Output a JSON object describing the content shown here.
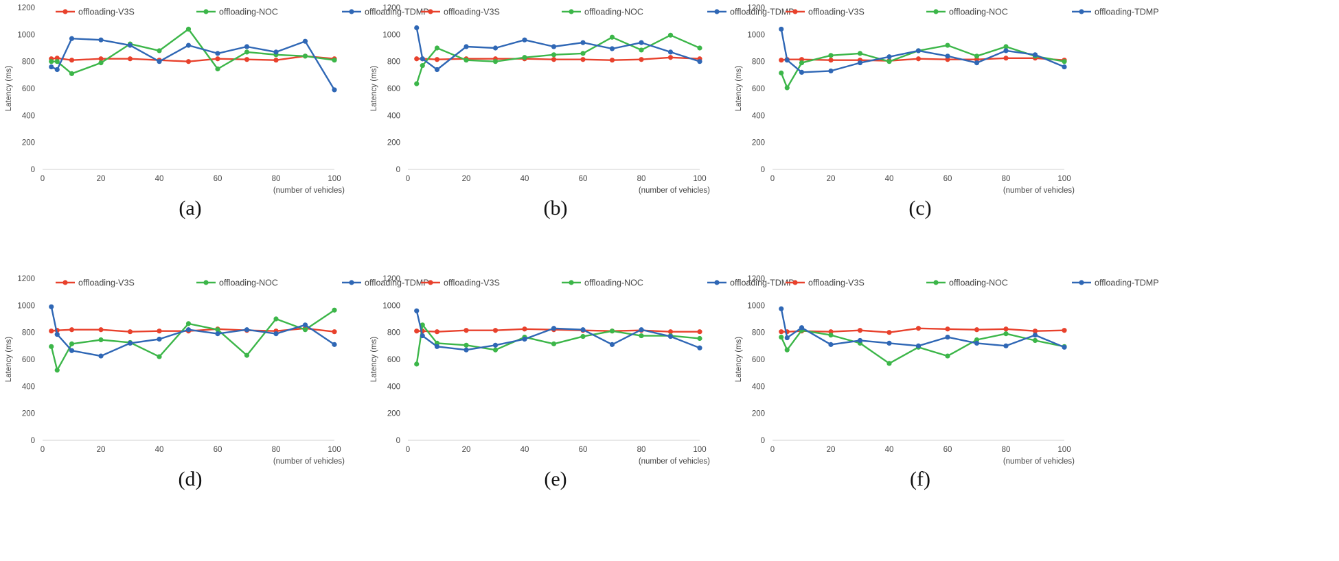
{
  "colors": {
    "V3S": "#e8412c",
    "NOC": "#3cb649",
    "TDMP": "#2f67b5"
  },
  "chart_data": [
    {
      "type": "line",
      "caption": "(a)",
      "ylabel": "Latency (ms)",
      "xlabel": "(number of vehicles)",
      "ylim": [
        0,
        1200
      ],
      "xlim": [
        0,
        100
      ],
      "yticks": [
        "0",
        "200",
        "400",
        "600",
        "800",
        "1000",
        "1200"
      ],
      "xticks": [
        "0",
        "20",
        "40",
        "60",
        "80",
        "100"
      ],
      "legend": "top",
      "x": [
        3,
        5,
        10,
        20,
        30,
        40,
        50,
        60,
        70,
        80,
        90,
        100
      ],
      "series": [
        {
          "name": "offloading-V3S",
          "color": "V3S",
          "values": [
            820,
            825,
            810,
            820,
            820,
            810,
            800,
            820,
            815,
            810,
            840,
            820
          ]
        },
        {
          "name": "offloading-NOC",
          "color": "NOC",
          "values": [
            800,
            800,
            710,
            790,
            930,
            880,
            1040,
            745,
            870,
            850,
            840,
            810
          ]
        },
        {
          "name": "offloading-TDMP",
          "color": "TDMP",
          "values": [
            760,
            740,
            970,
            960,
            920,
            800,
            920,
            860,
            910,
            870,
            950,
            590
          ]
        }
      ]
    },
    {
      "type": "line",
      "caption": "(b)",
      "ylabel": "Latency (ms)",
      "xlabel": "(number of vehicles)",
      "ylim": [
        0,
        1200
      ],
      "xlim": [
        0,
        100
      ],
      "yticks": [
        "0",
        "200",
        "400",
        "600",
        "800",
        "1000",
        "1200"
      ],
      "xticks": [
        "0",
        "20",
        "40",
        "60",
        "80",
        "100"
      ],
      "legend": "top",
      "x": [
        3,
        5,
        10,
        20,
        30,
        40,
        50,
        60,
        70,
        80,
        90,
        100
      ],
      "series": [
        {
          "name": "offloading-V3S",
          "color": "V3S",
          "values": [
            820,
            820,
            815,
            820,
            820,
            820,
            815,
            815,
            810,
            815,
            830,
            820
          ]
        },
        {
          "name": "offloading-NOC",
          "color": "NOC",
          "values": [
            635,
            770,
            900,
            810,
            800,
            830,
            850,
            860,
            980,
            885,
            995,
            900
          ]
        },
        {
          "name": "offloading-TDMP",
          "color": "TDMP",
          "values": [
            1050,
            820,
            740,
            910,
            900,
            960,
            910,
            940,
            895,
            940,
            870,
            800
          ]
        }
      ]
    },
    {
      "type": "line",
      "caption": "(c)",
      "ylabel": "Latency (ms)",
      "xlabel": "(number of vehicles)",
      "ylim": [
        0,
        1200
      ],
      "xlim": [
        0,
        100
      ],
      "yticks": [
        "0",
        "200",
        "400",
        "600",
        "800",
        "1000",
        "1200"
      ],
      "xticks": [
        "0",
        "20",
        "40",
        "60",
        "80",
        "100"
      ],
      "legend": "top",
      "x": [
        3,
        5,
        10,
        20,
        30,
        40,
        50,
        60,
        70,
        80,
        90,
        100
      ],
      "series": [
        {
          "name": "offloading-V3S",
          "color": "V3S",
          "values": [
            810,
            815,
            815,
            810,
            810,
            805,
            820,
            815,
            815,
            825,
            825,
            810
          ]
        },
        {
          "name": "offloading-NOC",
          "color": "NOC",
          "values": [
            715,
            605,
            790,
            845,
            860,
            800,
            880,
            920,
            840,
            910,
            840,
            800
          ]
        },
        {
          "name": "offloading-TDMP",
          "color": "TDMP",
          "values": [
            1040,
            810,
            720,
            730,
            790,
            835,
            880,
            840,
            790,
            880,
            850,
            760
          ]
        }
      ]
    },
    {
      "type": "line",
      "caption": "(d)",
      "ylabel": "Latency (ms)",
      "xlabel": "(number of vehicles)",
      "ylim": [
        0,
        1200
      ],
      "xlim": [
        0,
        100
      ],
      "yticks": [
        "0",
        "200",
        "400",
        "600",
        "800",
        "1000",
        "1200"
      ],
      "xticks": [
        "0",
        "20",
        "40",
        "60",
        "80",
        "100"
      ],
      "legend": "top",
      "x": [
        3,
        5,
        10,
        20,
        30,
        40,
        50,
        60,
        70,
        80,
        90,
        100
      ],
      "series": [
        {
          "name": "offloading-V3S",
          "color": "V3S",
          "values": [
            810,
            815,
            820,
            820,
            805,
            810,
            810,
            825,
            815,
            810,
            830,
            805
          ]
        },
        {
          "name": "offloading-NOC",
          "color": "NOC",
          "values": [
            695,
            520,
            715,
            745,
            725,
            620,
            865,
            820,
            630,
            900,
            820,
            965
          ]
        },
        {
          "name": "offloading-TDMP",
          "color": "TDMP",
          "values": [
            990,
            785,
            665,
            625,
            720,
            750,
            820,
            790,
            820,
            790,
            855,
            710
          ]
        }
      ]
    },
    {
      "type": "line",
      "caption": "(e)",
      "ylabel": "Latency (ms)",
      "xlabel": "(number of vehicles)",
      "ylim": [
        0,
        1200
      ],
      "xlim": [
        0,
        100
      ],
      "yticks": [
        "0",
        "200",
        "400",
        "600",
        "800",
        "1000",
        "1200"
      ],
      "xticks": [
        "0",
        "20",
        "40",
        "60",
        "80",
        "100"
      ],
      "legend": "top",
      "x": [
        3,
        5,
        10,
        20,
        30,
        40,
        50,
        60,
        70,
        80,
        90,
        100
      ],
      "series": [
        {
          "name": "offloading-V3S",
          "color": "V3S",
          "values": [
            810,
            810,
            805,
            815,
            815,
            825,
            820,
            815,
            810,
            815,
            805,
            805
          ]
        },
        {
          "name": "offloading-NOC",
          "color": "NOC",
          "values": [
            565,
            855,
            720,
            705,
            670,
            765,
            715,
            770,
            810,
            775,
            775,
            755
          ]
        },
        {
          "name": "offloading-TDMP",
          "color": "TDMP",
          "values": [
            960,
            775,
            695,
            670,
            705,
            750,
            830,
            820,
            710,
            820,
            770,
            685
          ]
        }
      ]
    },
    {
      "type": "line",
      "caption": "(f)",
      "ylabel": "Latency (ms)",
      "xlabel": "(number of vehicles)",
      "ylim": [
        0,
        1200
      ],
      "xlim": [
        0,
        100
      ],
      "yticks": [
        "0",
        "200",
        "400",
        "600",
        "800",
        "1000",
        "1200"
      ],
      "xticks": [
        "0",
        "20",
        "40",
        "60",
        "80",
        "100"
      ],
      "legend": "top",
      "x": [
        3,
        5,
        10,
        20,
        30,
        40,
        50,
        60,
        70,
        80,
        90,
        100
      ],
      "series": [
        {
          "name": "offloading-V3S",
          "color": "V3S",
          "values": [
            805,
            805,
            810,
            805,
            815,
            800,
            830,
            825,
            820,
            825,
            810,
            815
          ]
        },
        {
          "name": "offloading-NOC",
          "color": "NOC",
          "values": [
            765,
            670,
            815,
            780,
            720,
            570,
            690,
            625,
            745,
            790,
            740,
            695
          ]
        },
        {
          "name": "offloading-TDMP",
          "color": "TDMP",
          "values": [
            975,
            760,
            835,
            710,
            740,
            720,
            700,
            765,
            720,
            700,
            780,
            690
          ]
        }
      ]
    }
  ]
}
